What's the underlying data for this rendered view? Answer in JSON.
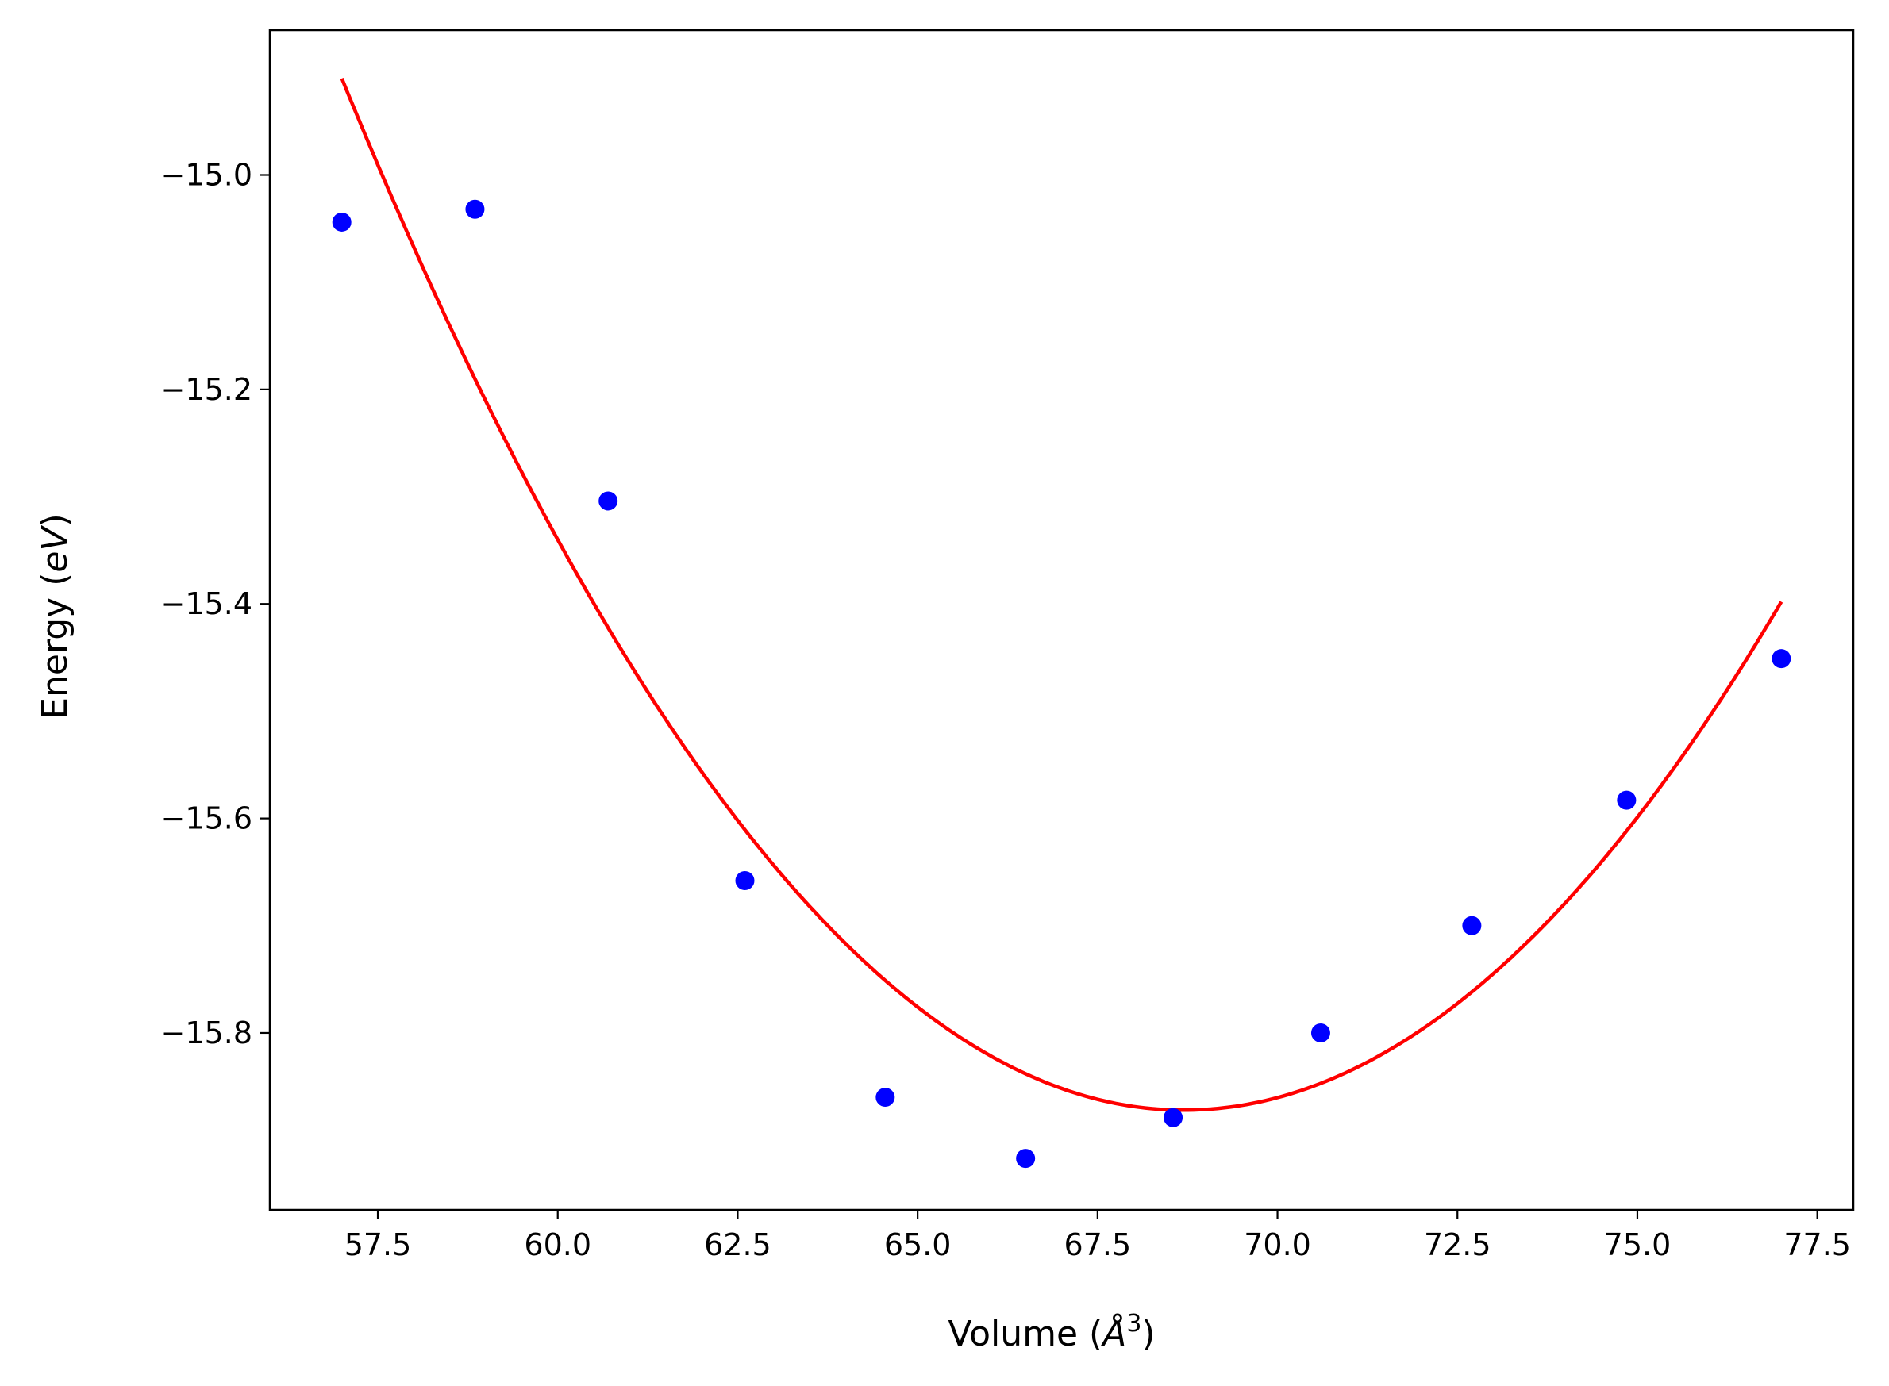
{
  "chart_data": {
    "type": "scatter",
    "title": "",
    "xlabel": {
      "text": "Volume (",
      "italic": "Å",
      "sup": "3",
      "close": ")"
    },
    "ylabel": {
      "text": "Energy (",
      "italic": "eV",
      "close": ")"
    },
    "xlim": [
      56.0,
      78.0
    ],
    "ylim": [
      -15.965,
      -14.865
    ],
    "xticks": [
      57.5,
      60.0,
      62.5,
      65.0,
      67.5,
      70.0,
      72.5,
      75.0,
      77.5
    ],
    "xtick_labels": [
      "57.5",
      "60.0",
      "62.5",
      "65.0",
      "67.5",
      "70.0",
      "72.5",
      "75.0",
      "77.5"
    ],
    "yticks": [
      -15.0,
      -15.2,
      -15.4,
      -15.6,
      -15.8
    ],
    "ytick_labels": [
      "−15.0",
      "−15.2",
      "−15.4",
      "−15.6",
      "−15.8"
    ],
    "grid": false,
    "legend": "none",
    "series": [
      {
        "kind": "points",
        "color": "#0000ff",
        "x": [
          57.0,
          58.85,
          60.7,
          62.6,
          64.55,
          66.5,
          68.55,
          70.6,
          72.7,
          74.85,
          77.0
        ],
        "y": [
          -15.044,
          -15.032,
          -15.304,
          -15.658,
          -15.86,
          -15.917,
          -15.879,
          -15.8,
          -15.7,
          -15.583,
          -15.451
        ]
      },
      {
        "kind": "fit-curve",
        "color": "#ff0000",
        "x_range": [
          57.0,
          77.0
        ],
        "minimum": {
          "x": 68.7,
          "y": -15.872
        },
        "y_at_x_start": -14.91,
        "y_at_x_end": -15.398
      }
    ]
  }
}
